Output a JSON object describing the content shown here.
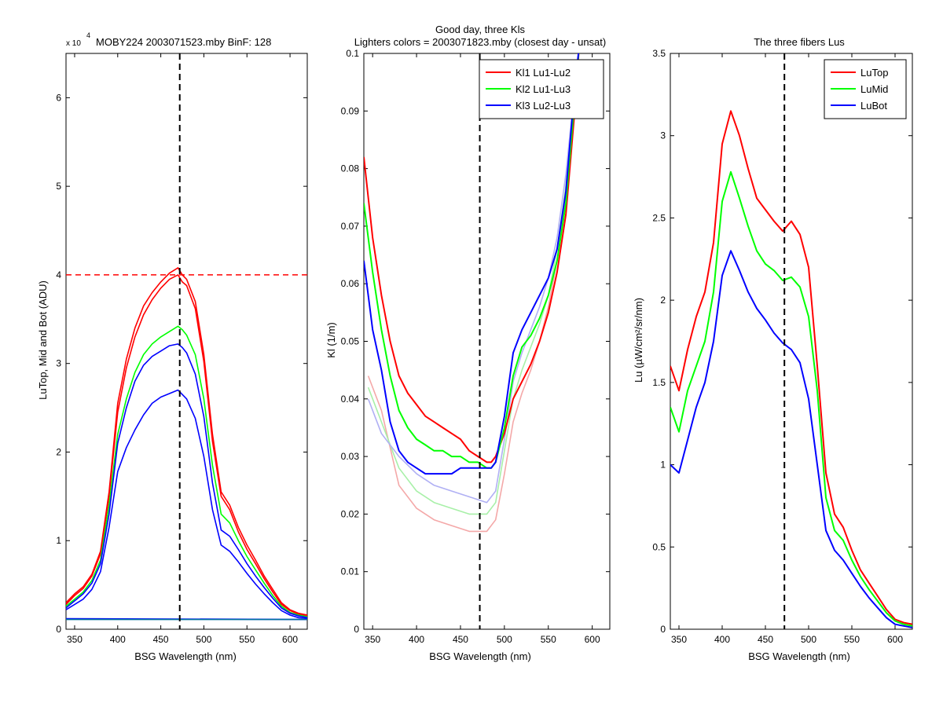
{
  "chart_data": [
    {
      "type": "line",
      "title": "MOBY224  2003071523.mby BinF: 128",
      "exponent_base": "x 10",
      "exponent_power": "4",
      "xlabel": "BSG Wavelength (nm)",
      "ylabel": "LuTop, Mid and Bot (ADU)",
      "xlim": [
        340,
        620
      ],
      "ylim": [
        0,
        6.5
      ],
      "xticks": [
        350,
        400,
        450,
        500,
        550,
        600
      ],
      "yticks": [
        0,
        1,
        2,
        3,
        4,
        5,
        6
      ],
      "vline_x": 472,
      "hline_y": 4.0,
      "series": [
        {
          "color": "#ff0000",
          "x": [
            340,
            350,
            360,
            370,
            380,
            390,
            400,
            410,
            420,
            430,
            440,
            450,
            460,
            470,
            475,
            480,
            490,
            500,
            510,
            520,
            530,
            540,
            550,
            560,
            570,
            580,
            590,
            600,
            610,
            620
          ],
          "values": [
            0.3,
            0.4,
            0.48,
            0.62,
            0.88,
            1.55,
            2.55,
            3.05,
            3.4,
            3.65,
            3.8,
            3.92,
            4.02,
            4.08,
            4.0,
            3.95,
            3.7,
            3.1,
            2.2,
            1.55,
            1.4,
            1.15,
            0.95,
            0.78,
            0.6,
            0.45,
            0.3,
            0.22,
            0.18,
            0.16
          ]
        },
        {
          "color": "#ff0000",
          "x": [
            340,
            350,
            360,
            370,
            380,
            390,
            400,
            410,
            420,
            430,
            440,
            450,
            460,
            470,
            475,
            480,
            490,
            500,
            510,
            520,
            530,
            540,
            550,
            560,
            570,
            580,
            590,
            600,
            610,
            620
          ],
          "values": [
            0.28,
            0.38,
            0.46,
            0.6,
            0.85,
            1.5,
            2.45,
            2.95,
            3.3,
            3.55,
            3.72,
            3.85,
            3.95,
            4.0,
            3.92,
            3.88,
            3.62,
            3.02,
            2.12,
            1.5,
            1.35,
            1.1,
            0.9,
            0.74,
            0.57,
            0.42,
            0.28,
            0.21,
            0.17,
            0.15
          ]
        },
        {
          "color": "#00ff00",
          "x": [
            340,
            350,
            360,
            370,
            380,
            390,
            400,
            410,
            420,
            430,
            440,
            450,
            460,
            470,
            475,
            480,
            490,
            500,
            510,
            520,
            530,
            540,
            550,
            560,
            570,
            580,
            590,
            600,
            610,
            620
          ],
          "values": [
            0.26,
            0.34,
            0.42,
            0.55,
            0.78,
            1.4,
            2.2,
            2.6,
            2.9,
            3.1,
            3.22,
            3.3,
            3.36,
            3.42,
            3.38,
            3.32,
            3.1,
            2.6,
            1.85,
            1.3,
            1.2,
            1.0,
            0.82,
            0.67,
            0.52,
            0.38,
            0.26,
            0.19,
            0.16,
            0.14
          ]
        },
        {
          "color": "#0000ff",
          "x": [
            340,
            350,
            360,
            370,
            380,
            390,
            400,
            410,
            420,
            430,
            440,
            450,
            460,
            470,
            475,
            480,
            490,
            500,
            510,
            520,
            530,
            540,
            550,
            560,
            570,
            580,
            590,
            600,
            610,
            620
          ],
          "values": [
            0.24,
            0.32,
            0.4,
            0.52,
            0.74,
            1.3,
            2.1,
            2.5,
            2.8,
            2.98,
            3.08,
            3.14,
            3.2,
            3.22,
            3.18,
            3.12,
            2.88,
            2.4,
            1.65,
            1.12,
            1.05,
            0.9,
            0.74,
            0.6,
            0.47,
            0.35,
            0.24,
            0.18,
            0.15,
            0.13
          ]
        },
        {
          "color": "#0000ff",
          "x": [
            340,
            350,
            360,
            370,
            380,
            390,
            400,
            410,
            420,
            430,
            440,
            450,
            460,
            470,
            475,
            480,
            490,
            500,
            510,
            520,
            530,
            540,
            550,
            560,
            570,
            580,
            590,
            600,
            610,
            620
          ],
          "values": [
            0.22,
            0.28,
            0.34,
            0.45,
            0.65,
            1.15,
            1.78,
            2.05,
            2.25,
            2.42,
            2.55,
            2.62,
            2.66,
            2.7,
            2.65,
            2.6,
            2.38,
            1.95,
            1.35,
            0.95,
            0.88,
            0.76,
            0.63,
            0.51,
            0.4,
            0.3,
            0.21,
            0.16,
            0.13,
            0.12
          ]
        },
        {
          "color": "#0000ff",
          "x": [
            340,
            620
          ],
          "values": [
            0.12,
            0.11
          ]
        },
        {
          "color": "#0070a0",
          "x": [
            340,
            620
          ],
          "values": [
            0.11,
            0.11
          ]
        }
      ]
    },
    {
      "type": "line",
      "title": "Good day, three Kls",
      "subtitle": "Lighters colors = 2003071823.mby (closest day - unsat)",
      "xlabel": "BSG Wavelength (nm)",
      "ylabel": "Kl (1/m)",
      "xlim": [
        340,
        620
      ],
      "ylim": [
        0,
        0.1
      ],
      "xticks": [
        350,
        400,
        450,
        500,
        550,
        600
      ],
      "yticks": [
        0,
        0.01,
        0.02,
        0.03,
        0.04,
        0.05,
        0.06,
        0.07,
        0.08,
        0.09,
        0.1
      ],
      "vline_x": 472,
      "legend_position": "top-right",
      "series": [
        {
          "name": "Kl1 Lu1-Lu2",
          "color": "#ff0000",
          "x": [
            340,
            345,
            350,
            360,
            370,
            380,
            390,
            400,
            410,
            420,
            430,
            440,
            450,
            460,
            470,
            480,
            485,
            490,
            500,
            510,
            520,
            530,
            540,
            550,
            560,
            570,
            580,
            585
          ],
          "values": [
            0.082,
            0.075,
            0.068,
            0.058,
            0.05,
            0.044,
            0.041,
            0.039,
            0.037,
            0.036,
            0.035,
            0.034,
            0.033,
            0.031,
            0.03,
            0.029,
            0.029,
            0.03,
            0.034,
            0.04,
            0.043,
            0.046,
            0.05,
            0.055,
            0.062,
            0.072,
            0.09,
            0.101
          ]
        },
        {
          "name": "Kl2 Lu1-Lu3",
          "color": "#00ff00",
          "x": [
            340,
            345,
            350,
            360,
            370,
            380,
            390,
            400,
            410,
            420,
            430,
            440,
            450,
            460,
            470,
            480,
            485,
            490,
            500,
            510,
            520,
            530,
            540,
            550,
            560,
            570,
            580,
            585
          ],
          "values": [
            0.074,
            0.068,
            0.062,
            0.052,
            0.044,
            0.038,
            0.035,
            0.033,
            0.032,
            0.031,
            0.031,
            0.03,
            0.03,
            0.029,
            0.029,
            0.028,
            0.028,
            0.029,
            0.035,
            0.044,
            0.049,
            0.051,
            0.054,
            0.058,
            0.064,
            0.074,
            0.092,
            0.101
          ]
        },
        {
          "name": "Kl3 Lu2-Lu3",
          "color": "#0000ff",
          "x": [
            340,
            345,
            350,
            360,
            370,
            380,
            390,
            400,
            410,
            420,
            430,
            440,
            450,
            460,
            470,
            480,
            485,
            490,
            500,
            510,
            520,
            530,
            540,
            550,
            560,
            570,
            580,
            585
          ],
          "values": [
            0.064,
            0.058,
            0.052,
            0.045,
            0.036,
            0.031,
            0.029,
            0.028,
            0.027,
            0.027,
            0.027,
            0.027,
            0.028,
            0.028,
            0.028,
            0.028,
            0.028,
            0.029,
            0.037,
            0.048,
            0.052,
            0.055,
            0.058,
            0.061,
            0.066,
            0.076,
            0.094,
            0.101
          ]
        },
        {
          "color": "#f4a8a8",
          "x": [
            345,
            360,
            380,
            400,
            420,
            440,
            460,
            480,
            490,
            500,
            510,
            520,
            530,
            540,
            550,
            560,
            570,
            580
          ],
          "values": [
            0.044,
            0.038,
            0.025,
            0.021,
            0.019,
            0.018,
            0.017,
            0.017,
            0.019,
            0.027,
            0.036,
            0.041,
            0.045,
            0.05,
            0.056,
            0.064,
            0.075,
            0.09
          ]
        },
        {
          "color": "#a8f0a8",
          "x": [
            345,
            360,
            380,
            400,
            420,
            440,
            460,
            480,
            490,
            500,
            510,
            520,
            530,
            540,
            550,
            560,
            570,
            580
          ],
          "values": [
            0.042,
            0.036,
            0.028,
            0.024,
            0.022,
            0.021,
            0.02,
            0.02,
            0.022,
            0.031,
            0.04,
            0.045,
            0.049,
            0.053,
            0.058,
            0.066,
            0.077,
            0.092
          ]
        },
        {
          "color": "#b0b0f4",
          "x": [
            345,
            360,
            380,
            400,
            420,
            440,
            460,
            480,
            490,
            500,
            510,
            520,
            530,
            540,
            550,
            560,
            570,
            580
          ],
          "values": [
            0.04,
            0.034,
            0.03,
            0.027,
            0.025,
            0.024,
            0.023,
            0.022,
            0.024,
            0.033,
            0.043,
            0.048,
            0.052,
            0.056,
            0.061,
            0.068,
            0.079,
            0.094
          ]
        }
      ]
    },
    {
      "type": "line",
      "title": "The three fibers Lus",
      "xlabel": "BSG Wavelength (nm)",
      "ylabel": "Lu (µW/cm²/sr/nm)",
      "xlim": [
        340,
        620
      ],
      "ylim": [
        0,
        3.5
      ],
      "xticks": [
        350,
        400,
        450,
        500,
        550,
        600
      ],
      "yticks": [
        0,
        0.5,
        1,
        1.5,
        2,
        2.5,
        3,
        3.5
      ],
      "vline_x": 472,
      "legend_position": "top-right",
      "series": [
        {
          "name": "LuTop",
          "color": "#ff0000",
          "x": [
            340,
            350,
            360,
            370,
            380,
            390,
            400,
            410,
            420,
            430,
            440,
            450,
            460,
            470,
            480,
            490,
            500,
            510,
            520,
            530,
            540,
            550,
            560,
            570,
            580,
            590,
            600,
            610,
            620
          ],
          "values": [
            1.6,
            1.45,
            1.7,
            1.9,
            2.05,
            2.35,
            2.95,
            3.15,
            3.0,
            2.8,
            2.62,
            2.55,
            2.48,
            2.42,
            2.48,
            2.4,
            2.2,
            1.6,
            0.95,
            0.7,
            0.62,
            0.48,
            0.36,
            0.28,
            0.2,
            0.12,
            0.06,
            0.04,
            0.03
          ]
        },
        {
          "name": "LuMid",
          "color": "#00ff00",
          "x": [
            340,
            350,
            360,
            370,
            380,
            390,
            400,
            410,
            420,
            430,
            440,
            450,
            460,
            470,
            480,
            490,
            500,
            510,
            520,
            530,
            540,
            550,
            560,
            570,
            580,
            590,
            600,
            610,
            620
          ],
          "values": [
            1.35,
            1.2,
            1.45,
            1.6,
            1.75,
            2.05,
            2.6,
            2.78,
            2.62,
            2.45,
            2.3,
            2.22,
            2.18,
            2.12,
            2.14,
            2.08,
            1.9,
            1.45,
            0.8,
            0.6,
            0.54,
            0.42,
            0.32,
            0.24,
            0.17,
            0.1,
            0.05,
            0.03,
            0.02
          ]
        },
        {
          "name": "LuBot",
          "color": "#0000ff",
          "x": [
            340,
            350,
            360,
            370,
            380,
            390,
            400,
            410,
            420,
            430,
            440,
            450,
            460,
            470,
            480,
            490,
            500,
            510,
            520,
            530,
            540,
            550,
            560,
            570,
            580,
            590,
            600,
            610,
            620
          ],
          "values": [
            1.0,
            0.95,
            1.15,
            1.35,
            1.5,
            1.75,
            2.15,
            2.3,
            2.18,
            2.05,
            1.95,
            1.88,
            1.8,
            1.74,
            1.7,
            1.62,
            1.4,
            1.0,
            0.6,
            0.48,
            0.42,
            0.34,
            0.26,
            0.19,
            0.13,
            0.07,
            0.03,
            0.02,
            0.01
          ]
        }
      ]
    }
  ]
}
